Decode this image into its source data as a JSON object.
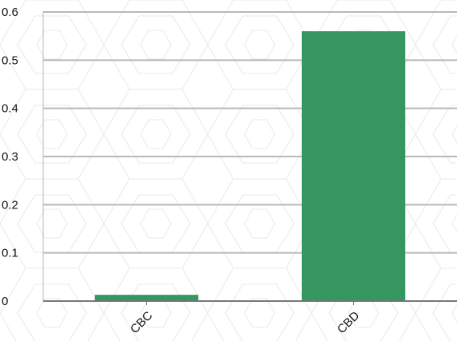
{
  "chart_data": {
    "type": "bar",
    "categories": [
      "CBC",
      "CBD"
    ],
    "values": [
      0.013,
      0.56
    ],
    "title": "",
    "xlabel": "",
    "ylabel": "",
    "ylim": [
      0,
      0.6
    ],
    "yticks": [
      0,
      0.1,
      0.2,
      0.3,
      0.4,
      0.5,
      0.6
    ],
    "ytick_labels": [
      "0",
      "0.1",
      "0.2",
      "0.3",
      "0.4",
      "0.5",
      "0.6"
    ],
    "grid": "horizontal",
    "bar_color": "#36965f",
    "grid_color": "#b8b8b8",
    "background_pattern": "faint hexagon watermark"
  }
}
